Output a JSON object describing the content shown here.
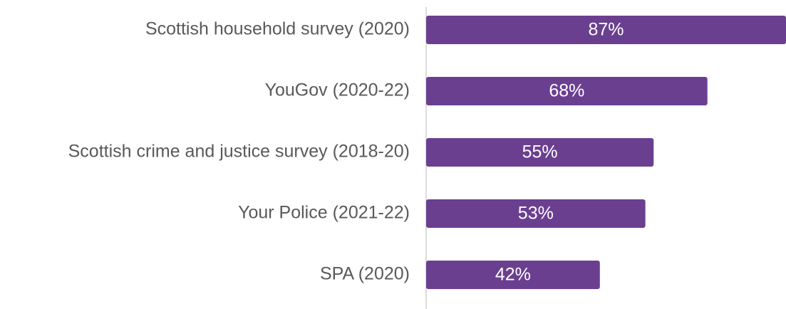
{
  "chart_data": {
    "type": "bar",
    "orientation": "horizontal",
    "categories": [
      "Scottish household survey (2020)",
      "YouGov (2020-22)",
      "Scottish crime and justice survey (2018-20)",
      "Your Police (2021-22)",
      "SPA (2020)"
    ],
    "values": [
      87,
      68,
      55,
      53,
      42
    ],
    "value_labels": [
      "87%",
      "68%",
      "55%",
      "53%",
      "42%"
    ],
    "color": "#6a3f90",
    "xlim": [
      0,
      87
    ]
  }
}
